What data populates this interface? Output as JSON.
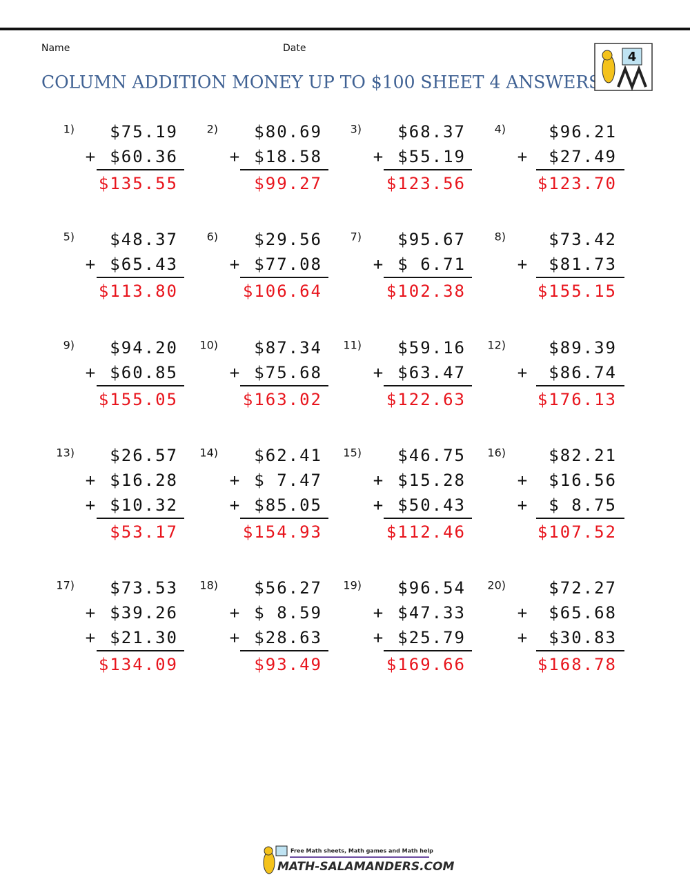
{
  "header": {
    "name_label": "Name",
    "date_label": "Date",
    "title": "COLUMN ADDITION MONEY UP TO $100 SHEET 4 ANSWERS",
    "logo_label": "4"
  },
  "operator": "+",
  "problems": [
    {
      "number": "1)",
      "addends": [
        "$75.19",
        "$60.36"
      ],
      "answer": "$135.55"
    },
    {
      "number": "2)",
      "addends": [
        "$80.69",
        "$18.58"
      ],
      "answer": "$99.27"
    },
    {
      "number": "3)",
      "addends": [
        "$68.37",
        "$55.19"
      ],
      "answer": "$123.56"
    },
    {
      "number": "4)",
      "addends": [
        "$96.21",
        "$27.49"
      ],
      "answer": "$123.70"
    },
    {
      "number": "5)",
      "addends": [
        "$48.37",
        "$65.43"
      ],
      "answer": "$113.80"
    },
    {
      "number": "6)",
      "addends": [
        "$29.56",
        "$77.08"
      ],
      "answer": "$106.64"
    },
    {
      "number": "7)",
      "addends": [
        "$95.67",
        "$ 6.71"
      ],
      "answer": "$102.38"
    },
    {
      "number": "8)",
      "addends": [
        "$73.42",
        "$81.73"
      ],
      "answer": "$155.15"
    },
    {
      "number": "9)",
      "addends": [
        "$94.20",
        "$60.85"
      ],
      "answer": "$155.05"
    },
    {
      "number": "10)",
      "addends": [
        "$87.34",
        "$75.68"
      ],
      "answer": "$163.02"
    },
    {
      "number": "11)",
      "addends": [
        "$59.16",
        "$63.47"
      ],
      "answer": "$122.63"
    },
    {
      "number": "12)",
      "addends": [
        "$89.39",
        "$86.74"
      ],
      "answer": "$176.13"
    },
    {
      "number": "13)",
      "addends": [
        "$26.57",
        "$16.28",
        "$10.32"
      ],
      "answer": "$53.17"
    },
    {
      "number": "14)",
      "addends": [
        "$62.41",
        "$ 7.47",
        "$85.05"
      ],
      "answer": "$154.93"
    },
    {
      "number": "15)",
      "addends": [
        "$46.75",
        "$15.28",
        "$50.43"
      ],
      "answer": "$112.46"
    },
    {
      "number": "16)",
      "addends": [
        "$82.21",
        "$16.56",
        "$ 8.75"
      ],
      "answer": "$107.52"
    },
    {
      "number": "17)",
      "addends": [
        "$73.53",
        "$39.26",
        "$21.30"
      ],
      "answer": "$134.09"
    },
    {
      "number": "18)",
      "addends": [
        "$56.27",
        "$ 8.59",
        "$28.63"
      ],
      "answer": "$93.49"
    },
    {
      "number": "19)",
      "addends": [
        "$96.54",
        "$47.33",
        "$25.79"
      ],
      "answer": "$169.66"
    },
    {
      "number": "20)",
      "addends": [
        "$72.27",
        "$65.68",
        "$30.83"
      ],
      "answer": "$168.78"
    }
  ],
  "footer": {
    "tagline": "Free Math sheets, Math games and Math help",
    "site": "MATH-SALAMANDERS.COM"
  }
}
